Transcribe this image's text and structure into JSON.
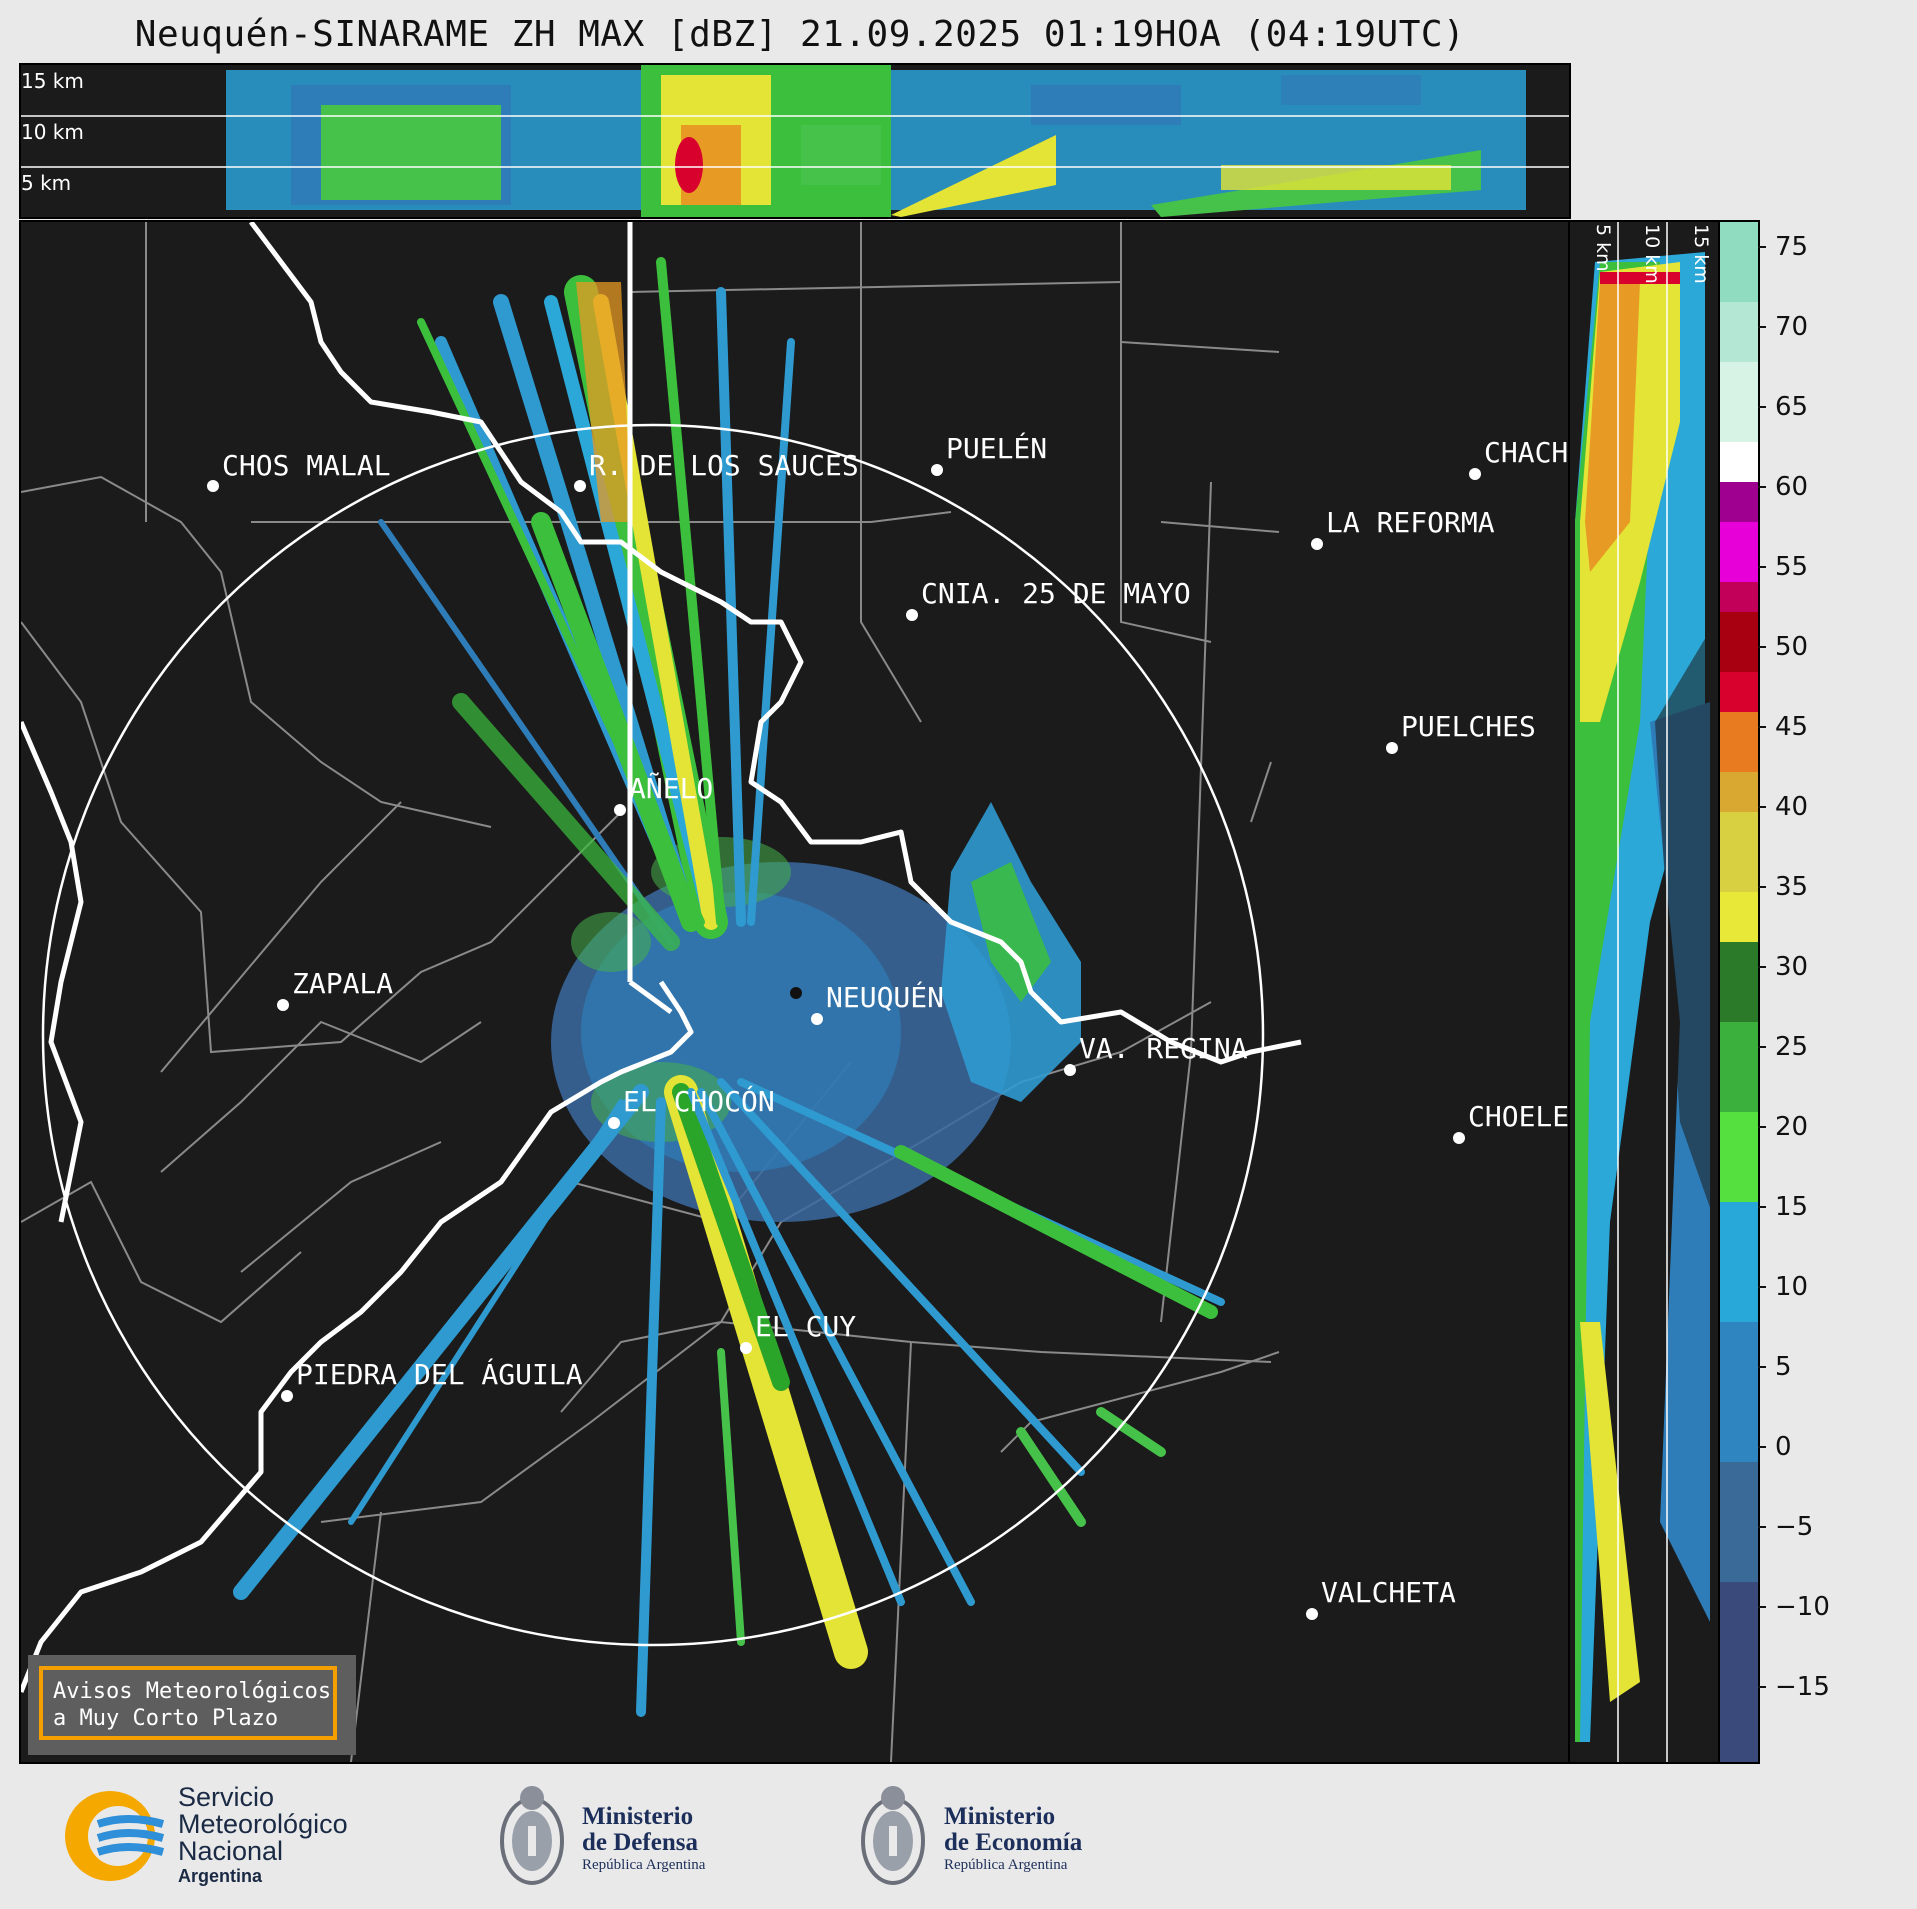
{
  "title": "Neuquén-SINARAME ZH MAX [dBZ] 21.09.2025 01:19HOA (04:19UTC)",
  "top_panel": {
    "altitude_labels": [
      "15 km",
      "10 km",
      "5 km"
    ]
  },
  "side_panel": {
    "altitude_labels": [
      "5 km",
      "10 km",
      "15 km"
    ]
  },
  "map": {
    "cities": [
      {
        "name": "CHOS MALAL"
      },
      {
        "name": "R. DE LOS SAUCES"
      },
      {
        "name": "PUELÉN"
      },
      {
        "name": "CHACH"
      },
      {
        "name": "LA REFORMA"
      },
      {
        "name": "CNIA. 25 DE MAYO"
      },
      {
        "name": "PUELCHES"
      },
      {
        "name": "AÑELO"
      },
      {
        "name": "ZAPALA"
      },
      {
        "name": "NEUQUÉN"
      },
      {
        "name": "VA. REGINA"
      },
      {
        "name": "EL CHOCÓN"
      },
      {
        "name": "CHOELE"
      },
      {
        "name": "EL CUY"
      },
      {
        "name": "PIEDRA DEL ÁGUILA"
      },
      {
        "name": "VALCHETA"
      }
    ],
    "aviso": {
      "line1": "Avisos Meteorológicos",
      "line2": "a Muy Corto Plazo"
    }
  },
  "colorbar": {
    "unit": "dBZ",
    "ticks": [
      "75",
      "70",
      "65",
      "60",
      "55",
      "50",
      "45",
      "40",
      "35",
      "30",
      "25",
      "20",
      "15",
      "10",
      "5",
      "0",
      "−5",
      "−10",
      "−15"
    ],
    "colors": {
      "high": "#8fdcc0",
      "white": "#ffffff",
      "purple": "#a0008f",
      "magenta": "#e800d8",
      "red": "#d8002c",
      "orange": "#e89020",
      "yellow": "#e8e838",
      "green": "#2aa52a",
      "lightgreen": "#55e040",
      "cyan": "#28a8d8",
      "blue": "#2f6fa8",
      "navy": "#3a4a7a"
    }
  },
  "footer": {
    "smn": {
      "line1": "Servicio",
      "line2": "Meteorológico",
      "line3": "Nacional",
      "line4": "Argentina"
    },
    "defensa": {
      "line1": "Ministerio",
      "line2": "de Defensa",
      "line3": "República Argentina"
    },
    "economia": {
      "line1": "Ministerio",
      "line2": "de Economía",
      "line3": "República Argentina"
    }
  }
}
